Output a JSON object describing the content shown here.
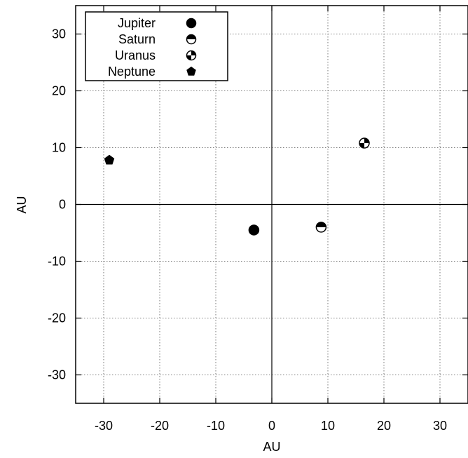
{
  "chart_data": {
    "type": "scatter",
    "title": "",
    "xlabel": "AU",
    "ylabel": "AU",
    "xlim": [
      -35,
      35
    ],
    "ylim": [
      -35,
      35
    ],
    "xticks": [
      -30,
      -20,
      -10,
      0,
      10,
      20,
      30
    ],
    "yticks": [
      -30,
      -20,
      -10,
      0,
      10,
      20,
      30
    ],
    "grid": true,
    "zero_axes": true,
    "legend_position": "top-left",
    "series": [
      {
        "name": "Jupiter",
        "marker": "filled-circle",
        "x": [
          -3.2
        ],
        "y": [
          -4.5
        ]
      },
      {
        "name": "Saturn",
        "marker": "half-filled-circle",
        "x": [
          8.8
        ],
        "y": [
          -4.0
        ]
      },
      {
        "name": "Uranus",
        "marker": "quartered-circle",
        "x": [
          16.5
        ],
        "y": [
          10.8
        ]
      },
      {
        "name": "Neptune",
        "marker": "filled-pentagon",
        "x": [
          -29.0
        ],
        "y": [
          7.8
        ]
      }
    ]
  }
}
